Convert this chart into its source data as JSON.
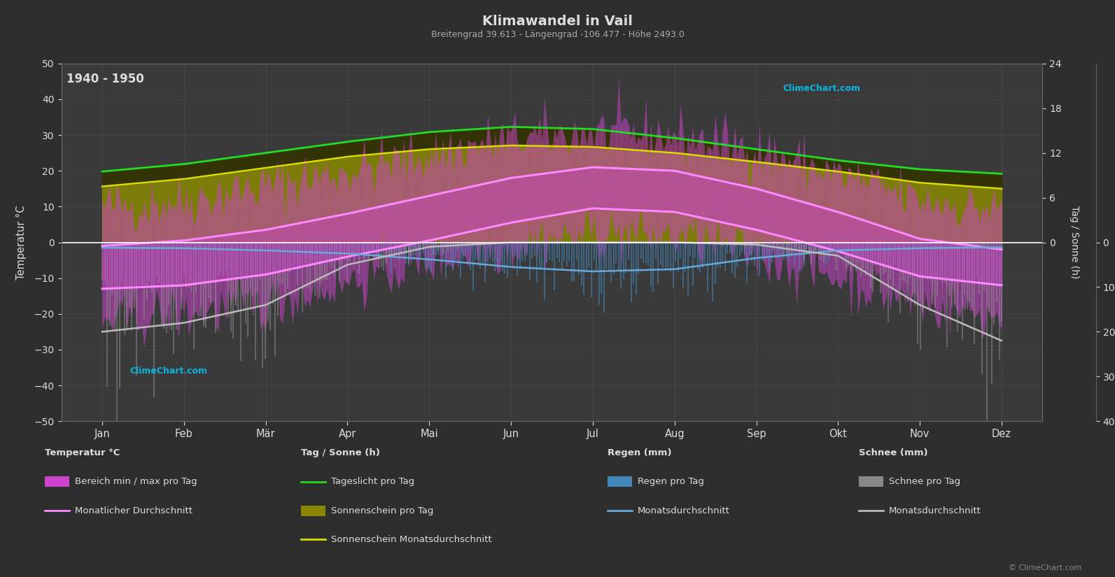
{
  "title": "Klimawandel in Vail",
  "subtitle": "Breitengrad 39.613 - Längengrad -106.477 - Höhe 2493.0",
  "year_range": "1940 - 1950",
  "background_color": "#2e2e2e",
  "plot_bg_color": "#3a3a3a",
  "months": [
    "Jan",
    "Feb",
    "Mär",
    "Apr",
    "Mai",
    "Jun",
    "Jul",
    "Aug",
    "Sep",
    "Okt",
    "Nov",
    "Dez"
  ],
  "temp_avg_max": [
    -1.0,
    0.5,
    3.5,
    8.0,
    13.0,
    18.0,
    21.0,
    20.0,
    15.0,
    8.5,
    1.0,
    -2.0
  ],
  "temp_avg_min": [
    -13.0,
    -12.0,
    -9.0,
    -4.0,
    0.5,
    5.5,
    9.5,
    8.5,
    3.5,
    -2.5,
    -9.5,
    -12.0
  ],
  "temp_daily_max": [
    10.0,
    12.0,
    16.0,
    20.0,
    24.5,
    29.0,
    31.0,
    30.0,
    26.0,
    19.0,
    12.0,
    9.0
  ],
  "temp_daily_min": [
    -22.0,
    -20.0,
    -17.0,
    -11.0,
    -5.0,
    -1.0,
    2.5,
    1.5,
    -3.5,
    -10.0,
    -17.0,
    -21.0
  ],
  "daylight": [
    9.5,
    10.5,
    12.0,
    13.5,
    14.8,
    15.5,
    15.2,
    14.0,
    12.5,
    11.0,
    9.8,
    9.2
  ],
  "sunshine": [
    7.5,
    8.5,
    10.0,
    11.5,
    12.5,
    13.0,
    12.8,
    12.0,
    10.8,
    9.5,
    8.0,
    7.2
  ],
  "rain_daily_max": [
    0.8,
    0.9,
    1.5,
    2.2,
    3.5,
    5.0,
    7.0,
    6.5,
    4.0,
    2.0,
    1.2,
    0.7
  ],
  "rain_monthly_avg": [
    1.2,
    1.3,
    1.8,
    2.5,
    3.8,
    5.5,
    6.5,
    6.0,
    3.5,
    1.8,
    1.3,
    1.1
  ],
  "snow_daily_max": [
    25.0,
    22.0,
    18.0,
    8.0,
    2.0,
    0.0,
    0.0,
    0.0,
    1.0,
    5.0,
    18.0,
    28.0
  ],
  "snow_monthly_avg": [
    20.0,
    18.0,
    14.0,
    5.0,
    1.0,
    0.0,
    0.0,
    0.0,
    0.5,
    3.0,
    14.0,
    22.0
  ],
  "colors": {
    "bg": "#2e2e2e",
    "plot_bg": "#3a3a3a",
    "temp_bar": "#cc44cc",
    "temp_avg_fill": "#cc44cc",
    "temp_avg_line": "#ff88ff",
    "daylight_line": "#22dd22",
    "sunshine_fill_dark": "#666600",
    "sunshine_fill": "#aaaa00",
    "sunshine_line": "#dddd00",
    "rain_bar": "#4488bb",
    "rain_line": "#66aadd",
    "snow_bar": "#999999",
    "snow_line": "#bbbbbb",
    "zero_line": "#ffffff",
    "grid": "#555555",
    "text": "#dddddd",
    "cyan": "#00ccff"
  },
  "ylim": [
    -50,
    50
  ],
  "yticks": [
    -50,
    -40,
    -30,
    -20,
    -10,
    0,
    10,
    20,
    30,
    40,
    50
  ],
  "hour_ticks": [
    0,
    6,
    12,
    18,
    24
  ],
  "mm_ticks": [
    0,
    10,
    20,
    30,
    40
  ]
}
